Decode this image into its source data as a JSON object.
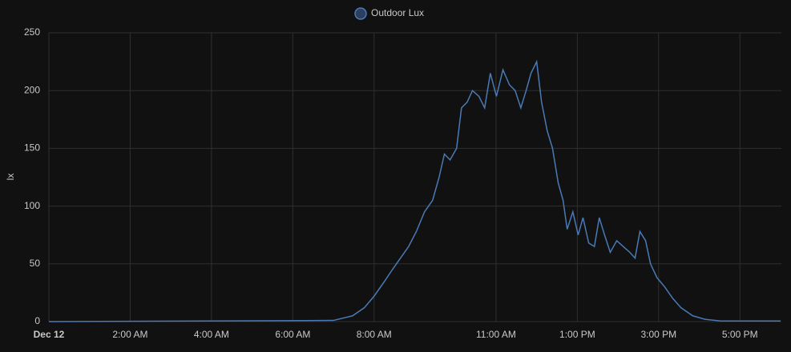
{
  "chart_data": {
    "type": "line",
    "x": [
      0,
      7.0,
      7.47,
      7.76,
      8.0,
      8.26,
      8.45,
      8.65,
      8.85,
      9.04,
      9.24,
      9.44,
      9.6,
      9.73,
      9.87,
      10.03,
      10.15,
      10.29,
      10.42,
      10.58,
      10.72,
      10.86,
      11.01,
      11.17,
      11.33,
      11.47,
      11.61,
      11.74,
      11.86,
      12.0,
      12.12,
      12.26,
      12.39,
      12.53,
      12.65,
      12.75,
      12.89,
      13.02,
      13.14,
      13.28,
      13.42,
      13.54,
      13.67,
      13.81,
      13.97,
      14.13,
      14.29,
      14.42,
      14.54,
      14.68,
      14.8,
      14.96,
      15.15,
      15.35,
      15.55,
      15.84,
      16.14,
      16.53,
      18.0
    ],
    "series": [
      {
        "name": "Outdoor Lux",
        "color": "#4a7ab5",
        "legend_fill": "#2c3f5e",
        "values": [
          0,
          1,
          5,
          12,
          22,
          35,
          45,
          55,
          65,
          78,
          95,
          105,
          125,
          145,
          140,
          150,
          185,
          190,
          200,
          195,
          185,
          215,
          195,
          218,
          205,
          200,
          185,
          200,
          215,
          225,
          190,
          165,
          150,
          120,
          105,
          80,
          95,
          75,
          90,
          68,
          65,
          90,
          75,
          60,
          70,
          65,
          60,
          55,
          78,
          70,
          50,
          38,
          30,
          20,
          12,
          5,
          2,
          0.5,
          0.5
        ]
      }
    ],
    "ylabel": "lx",
    "xlim": [
      0,
      18.02
    ],
    "xticks": [
      {
        "value": 0,
        "label": "Dec 12"
      },
      {
        "value": 2,
        "label": "2:00 AM"
      },
      {
        "value": 4,
        "label": "4:00 AM"
      },
      {
        "value": 6,
        "label": "6:00 AM"
      },
      {
        "value": 8,
        "label": "8:00 AM"
      },
      {
        "value": 11,
        "label": "11:00 AM"
      },
      {
        "value": 13,
        "label": "1:00 PM"
      },
      {
        "value": 15,
        "label": "3:00 PM"
      },
      {
        "value": 17,
        "label": "5:00 PM"
      }
    ],
    "ylim": [
      0,
      250
    ],
    "yticks": [
      0,
      50,
      100,
      150,
      200,
      250
    ],
    "grid": true
  }
}
